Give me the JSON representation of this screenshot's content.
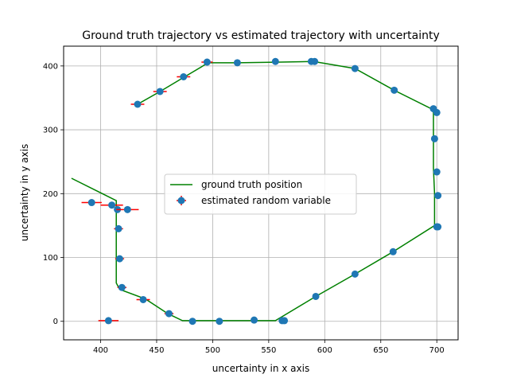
{
  "chart_data": {
    "type": "scatter",
    "title": "Ground truth trajectory vs estimated trajectory with uncertainty",
    "xlabel": "uncertainty in x axis",
    "ylabel": "uncertainty in y axis",
    "xlim": [
      367,
      719
    ],
    "ylim": [
      -29,
      431
    ],
    "xticks": [
      400,
      450,
      500,
      550,
      600,
      650,
      700
    ],
    "yticks": [
      0,
      100,
      200,
      300,
      400
    ],
    "grid": true,
    "legend_position": "center",
    "colors": {
      "ground_truth": "#008000",
      "estimate": "#1f77b4",
      "errorbar": "#ff0000"
    },
    "series": [
      {
        "name": "ground truth position",
        "kind": "line",
        "points": [
          [
            374,
            224
          ],
          [
            414,
            189
          ],
          [
            414,
            150
          ],
          [
            414,
            100
          ],
          [
            414,
            60
          ],
          [
            417,
            50
          ],
          [
            440,
            35
          ],
          [
            460,
            12
          ],
          [
            473,
            1
          ],
          [
            500,
            1
          ],
          [
            530,
            1
          ],
          [
            556,
            1
          ],
          [
            592,
            39
          ],
          [
            627,
            74
          ],
          [
            661,
            109
          ],
          [
            698,
            150
          ],
          [
            698,
            200
          ],
          [
            697,
            240
          ],
          [
            697,
            285
          ],
          [
            697,
            327
          ],
          [
            695,
            333
          ],
          [
            662,
            362
          ],
          [
            627,
            396
          ],
          [
            590,
            407
          ],
          [
            557,
            406
          ],
          [
            522,
            405
          ],
          [
            496,
            405
          ],
          [
            475,
            383
          ],
          [
            453,
            360
          ],
          [
            433,
            340
          ]
        ]
      },
      {
        "name": "estimated random variable",
        "kind": "errorbar",
        "points": [
          {
            "x": 407,
            "y": 1,
            "xerr": 9,
            "yerr": 5
          },
          {
            "x": 482,
            "y": 0,
            "xerr": 3,
            "yerr": 0
          },
          {
            "x": 506,
            "y": 0,
            "xerr": 2,
            "yerr": 0
          },
          {
            "x": 537,
            "y": 2,
            "xerr": 2,
            "yerr": 0
          },
          {
            "x": 562,
            "y": 1,
            "xerr": 2,
            "yerr": 0
          },
          {
            "x": 564,
            "y": 1,
            "xerr": 2,
            "yerr": 0
          },
          {
            "x": 592,
            "y": 39,
            "xerr": 2,
            "yerr": 0
          },
          {
            "x": 627,
            "y": 74,
            "xerr": 2,
            "yerr": 0
          },
          {
            "x": 661,
            "y": 109,
            "xerr": 2,
            "yerr": 0
          },
          {
            "x": 700,
            "y": 148,
            "xerr": 2,
            "yerr": 0
          },
          {
            "x": 701,
            "y": 148,
            "xerr": 1,
            "yerr": 0
          },
          {
            "x": 701,
            "y": 197,
            "xerr": 1,
            "yerr": 0
          },
          {
            "x": 700,
            "y": 234,
            "xerr": 1,
            "yerr": 0
          },
          {
            "x": 698,
            "y": 286,
            "xerr": 1,
            "yerr": 0
          },
          {
            "x": 700,
            "y": 327,
            "xerr": 1,
            "yerr": 0
          },
          {
            "x": 697,
            "y": 333,
            "xerr": 1,
            "yerr": 0
          },
          {
            "x": 662,
            "y": 362,
            "xerr": 2,
            "yerr": 0
          },
          {
            "x": 627,
            "y": 396,
            "xerr": 2,
            "yerr": 0
          },
          {
            "x": 591,
            "y": 407,
            "xerr": 2,
            "yerr": 0
          },
          {
            "x": 588,
            "y": 407,
            "xerr": 2,
            "yerr": 0
          },
          {
            "x": 556,
            "y": 407,
            "xerr": 2,
            "yerr": 0
          },
          {
            "x": 522,
            "y": 405,
            "xerr": 2,
            "yerr": 0
          },
          {
            "x": 495,
            "y": 406,
            "xerr": 5,
            "yerr": 0
          },
          {
            "x": 474,
            "y": 383,
            "xerr": 6,
            "yerr": 0
          },
          {
            "x": 453,
            "y": 360,
            "xerr": 6,
            "yerr": 0
          },
          {
            "x": 433,
            "y": 340,
            "xerr": 6,
            "yerr": 0
          },
          {
            "x": 392,
            "y": 186,
            "xerr": 9,
            "yerr": 0
          },
          {
            "x": 410,
            "y": 182,
            "xerr": 10,
            "yerr": 0
          },
          {
            "x": 415,
            "y": 175,
            "xerr": 3,
            "yerr": 0
          },
          {
            "x": 424,
            "y": 175,
            "xerr": 10,
            "yerr": 0
          },
          {
            "x": 416,
            "y": 145,
            "xerr": 4,
            "yerr": 0
          },
          {
            "x": 417,
            "y": 98,
            "xerr": 4,
            "yerr": 0
          },
          {
            "x": 419,
            "y": 53,
            "xerr": 4,
            "yerr": 0
          },
          {
            "x": 438,
            "y": 34,
            "xerr": 6,
            "yerr": 0
          },
          {
            "x": 461,
            "y": 12,
            "xerr": 4,
            "yerr": 0
          }
        ]
      }
    ]
  }
}
